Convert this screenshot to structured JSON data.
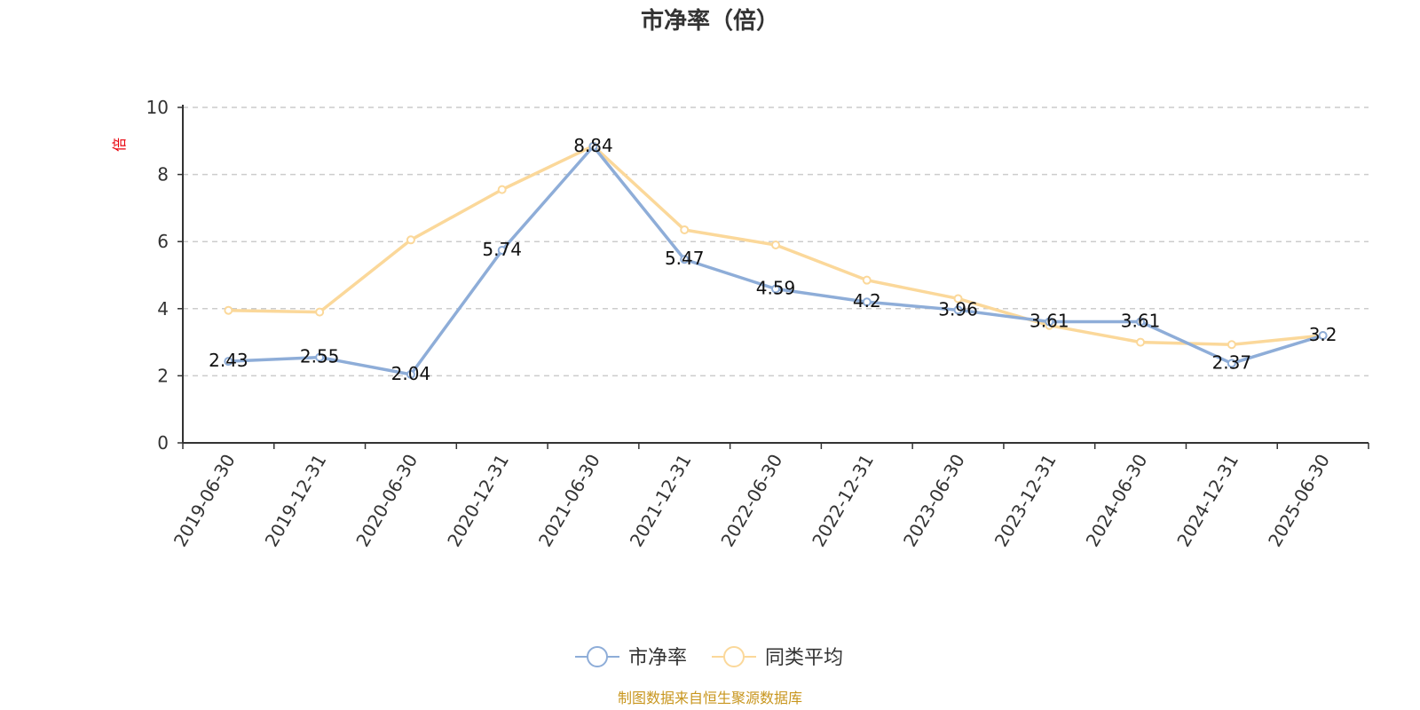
{
  "chart_data": {
    "type": "line",
    "title": "市净率（倍）",
    "ylabel": "倍",
    "ylim": [
      0,
      10
    ],
    "yticks": [
      0,
      2,
      4,
      6,
      8,
      10
    ],
    "grid": true,
    "legend_position": "bottom",
    "categories": [
      "2019-06-30",
      "2019-12-31",
      "2020-06-30",
      "2020-12-31",
      "2021-06-30",
      "2021-12-31",
      "2022-06-30",
      "2022-12-31",
      "2023-06-30",
      "2023-12-31",
      "2024-06-30",
      "2024-12-31",
      "2025-06-30"
    ],
    "series": [
      {
        "name": "市净率",
        "color": "#8eadd8",
        "values": [
          2.43,
          2.55,
          2.04,
          5.74,
          8.84,
          5.47,
          4.59,
          4.2,
          3.96,
          3.61,
          3.61,
          2.37,
          3.2
        ],
        "labels": [
          "2.43",
          "2.55",
          "2.04",
          "5.74",
          "8.84",
          "5.47",
          "4.59",
          "4.2",
          "3.96",
          "3.61",
          "3.61",
          "2.37",
          "3.2"
        ]
      },
      {
        "name": "同类平均",
        "color": "#fbd89a",
        "values": [
          3.95,
          3.9,
          6.05,
          7.55,
          8.85,
          6.35,
          5.9,
          4.85,
          4.3,
          3.5,
          3.0,
          2.93,
          3.2
        ]
      }
    ],
    "source": "制图数据来自恒生聚源数据库"
  }
}
